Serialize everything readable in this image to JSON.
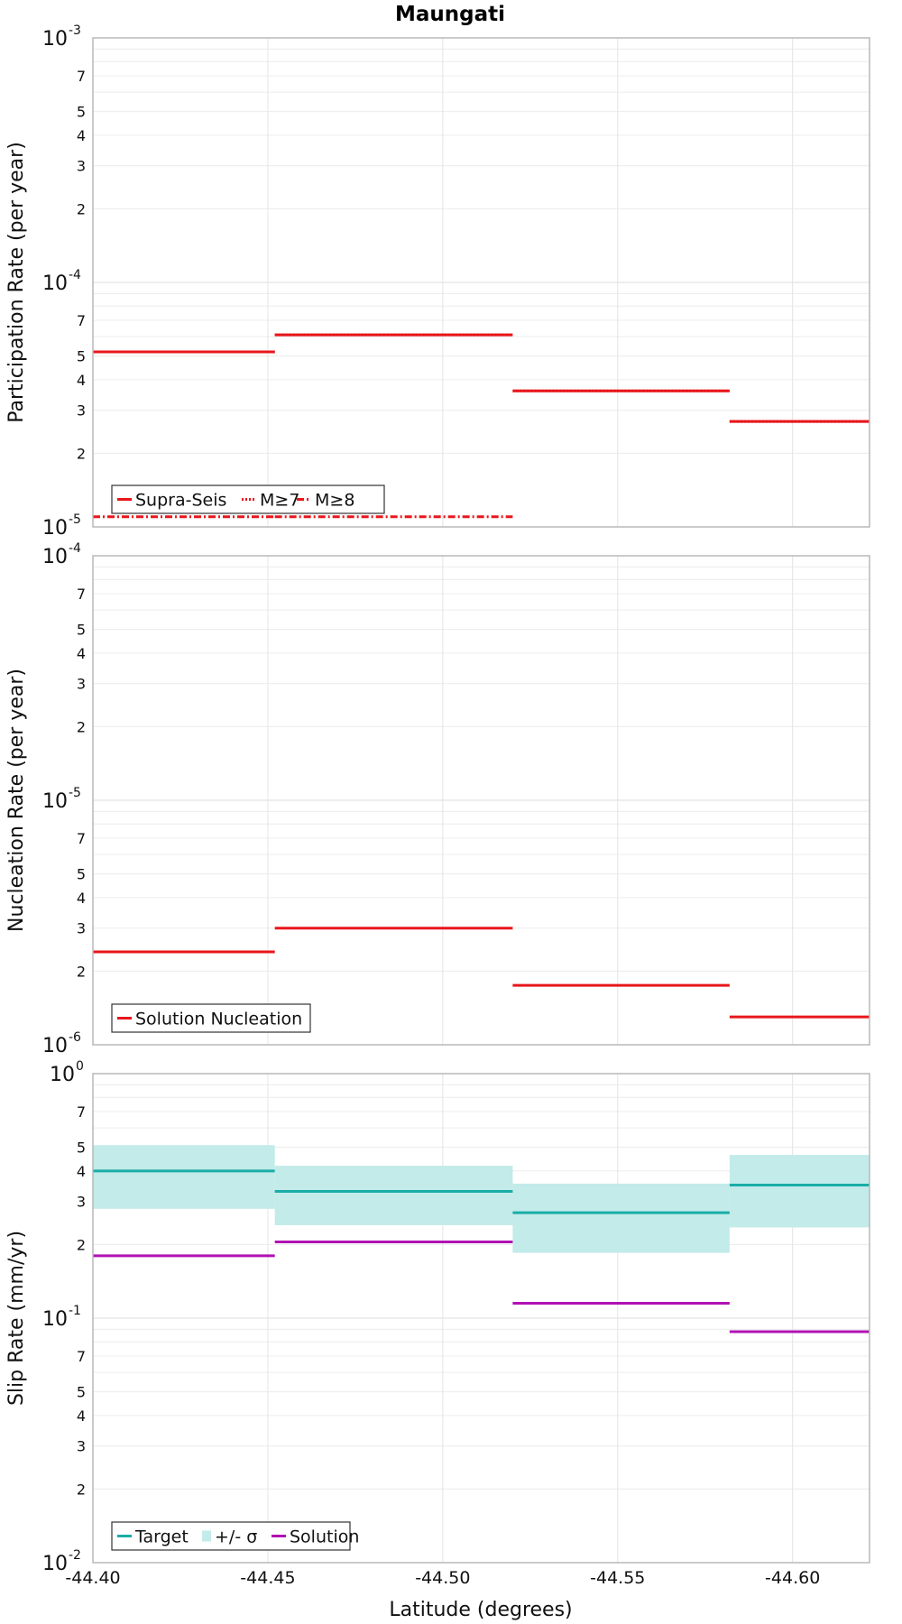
{
  "chart_data": {
    "type": "line",
    "title": "Maungati",
    "xlabel": "Latitude (degrees)",
    "xlim": [
      -44.4,
      -44.622
    ],
    "xticks": [
      -44.4,
      -44.45,
      -44.5,
      -44.55,
      -44.6
    ],
    "xtick_labels": [
      "-44.40",
      "-44.45",
      "-44.50",
      "-44.55",
      "-44.60"
    ],
    "bins": [
      [
        -44.4,
        -44.452
      ],
      [
        -44.452,
        -44.52
      ],
      [
        -44.52,
        -44.582
      ],
      [
        -44.582,
        -44.622
      ]
    ],
    "panels": [
      {
        "ylabel": "Participation Rate (per year)",
        "yscale": "log",
        "ylim": [
          1e-05,
          0.001
        ],
        "ytick_major": [
          {
            "base": "10",
            "exp": "-5"
          },
          {
            "base": "10",
            "exp": "-4"
          },
          {
            "base": "10",
            "exp": "-3"
          }
        ],
        "series": [
          {
            "name": "Supra-Seis",
            "style": "solid",
            "color": "#e8161b",
            "values": [
              5.2e-05,
              6.1e-05,
              3.6e-05,
              2.7e-05
            ]
          },
          {
            "name": "M≥7",
            "style": "dotted",
            "color": "#e8161b",
            "values": [
              5.2e-05,
              6.1e-05,
              3.6e-05,
              2.7e-05
            ]
          },
          {
            "name": "M≥8",
            "style": "dashdot",
            "color": "#e8161b",
            "values": [
              1.1e-05,
              1.1e-05,
              null,
              null
            ]
          }
        ]
      },
      {
        "ylabel": "Nucleation Rate (per year)",
        "yscale": "log",
        "ylim": [
          1e-06,
          0.0001
        ],
        "ytick_major": [
          {
            "base": "10",
            "exp": "-6"
          },
          {
            "base": "10",
            "exp": "-5"
          },
          {
            "base": "10",
            "exp": "-4"
          }
        ],
        "series": [
          {
            "name": "Solution Nucleation",
            "style": "solid",
            "color": "#e8161b",
            "values": [
              2.4e-06,
              3e-06,
              1.75e-06,
              1.3e-06
            ]
          }
        ]
      },
      {
        "ylabel": "Slip Rate (mm/yr)",
        "yscale": "log",
        "ylim": [
          0.01,
          1
        ],
        "ytick_major": [
          {
            "base": "10",
            "exp": "-2"
          },
          {
            "base": "10",
            "exp": "-1"
          },
          {
            "base": "10",
            "exp": "0"
          }
        ],
        "series": [
          {
            "name": "Target",
            "style": "solid",
            "color": "#1aada8",
            "values": [
              0.4,
              0.33,
              0.27,
              0.35
            ]
          },
          {
            "name": "+/- σ",
            "style": "band",
            "color": "#c2ebe9",
            "lower": [
              0.28,
              0.24,
              0.185,
              0.235
            ],
            "upper": [
              0.51,
              0.42,
              0.355,
              0.465
            ]
          },
          {
            "name": "Solution",
            "style": "solid",
            "color": "#b012b4",
            "values": [
              0.18,
              0.205,
              0.115,
              0.088
            ]
          }
        ]
      }
    ],
    "minor_tick_labels": [
      "2",
      "3",
      "4",
      "5",
      "7"
    ],
    "grid": true,
    "legend_position": "bottom-left"
  }
}
